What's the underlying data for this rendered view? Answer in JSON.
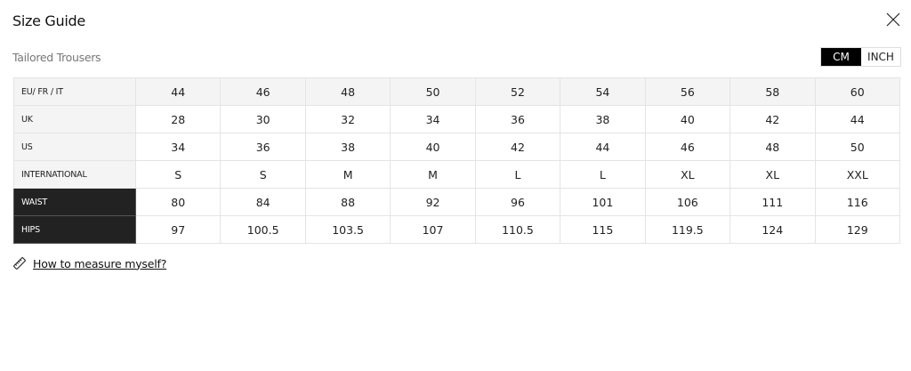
{
  "header": {
    "title": "Size Guide",
    "close_icon": "close-icon"
  },
  "product": "Tailored Trousers",
  "units": {
    "options": [
      "CM",
      "INCH"
    ],
    "selected": "CM"
  },
  "table": {
    "rows": [
      {
        "label": "EU/ FR / IT",
        "values": [
          "44",
          "46",
          "48",
          "50",
          "52",
          "54",
          "56",
          "58",
          "60"
        ],
        "style": "head"
      },
      {
        "label": "UK",
        "values": [
          "28",
          "30",
          "32",
          "34",
          "36",
          "38",
          "40",
          "42",
          "44"
        ],
        "style": "normal"
      },
      {
        "label": "US",
        "values": [
          "34",
          "36",
          "38",
          "40",
          "42",
          "44",
          "46",
          "48",
          "50"
        ],
        "style": "normal"
      },
      {
        "label": "INTERNATIONAL",
        "values": [
          "S",
          "S",
          "M",
          "M",
          "L",
          "L",
          "XL",
          "XL",
          "XXL"
        ],
        "style": "normal"
      },
      {
        "label": "WAIST",
        "values": [
          "80",
          "84",
          "88",
          "92",
          "96",
          "101",
          "106",
          "111",
          "116"
        ],
        "style": "dark"
      },
      {
        "label": "HIPS",
        "values": [
          "97",
          "100.5",
          "103.5",
          "107",
          "110.5",
          "115",
          "119.5",
          "124",
          "129"
        ],
        "style": "dark"
      }
    ]
  },
  "measure_link": {
    "label": "How to measure myself?",
    "icon": "ruler-icon"
  }
}
